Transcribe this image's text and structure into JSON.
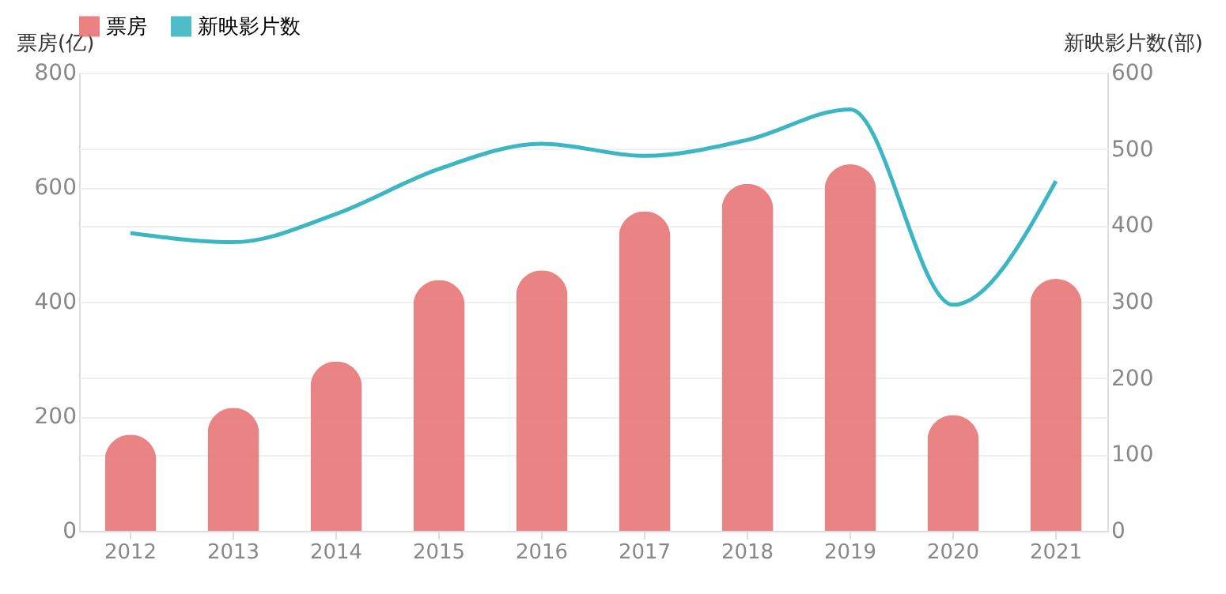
{
  "chart_data": {
    "type": "bar",
    "categories": [
      "2012",
      "2013",
      "2014",
      "2015",
      "2016",
      "2017",
      "2018",
      "2019",
      "2020",
      "2021"
    ],
    "ylabel": "票房(亿)",
    "y2label": "新映影片数(部)",
    "series": [
      {
        "name": "票房",
        "color": "#e87575",
        "values": [
          168,
          215,
          296,
          438,
          455,
          558,
          606,
          640,
          202,
          440
        ]
      },
      {
        "name": "新映影片数",
        "type": "line",
        "axis": "y2",
        "color": "#3bb6c2",
        "marker": "none",
        "values": [
          390,
          378,
          415,
          474,
          507,
          491,
          512,
          552,
          296,
          458
        ]
      }
    ],
    "ylim": [
      0,
      800
    ],
    "yticks": [
      0,
      200,
      400,
      600,
      800
    ],
    "y2lim": [
      0,
      600
    ],
    "y2ticks": [
      0,
      100,
      200,
      300,
      400,
      500,
      600
    ],
    "grid": true,
    "legend": "top"
  }
}
